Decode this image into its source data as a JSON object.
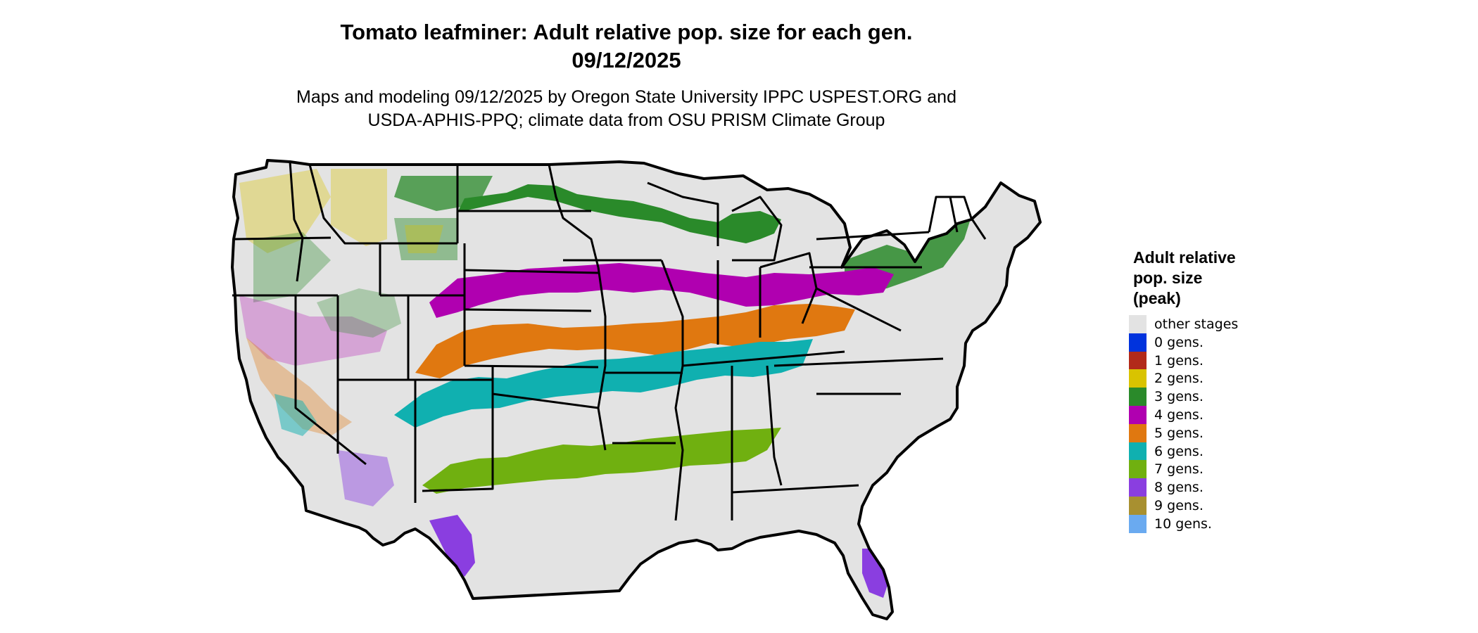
{
  "title_line1": "Tomato leafminer: Adult relative pop. size for each gen.",
  "title_line2": "09/12/2025",
  "subtitle_line1": "Maps and modeling 09/12/2025 by Oregon State University IPPC USPEST.ORG and",
  "subtitle_line2": "USDA-APHIS-PPQ; climate data from OSU PRISM Climate Group",
  "map": {
    "region": "Contiguous United States",
    "base_color": "#e3e3e3",
    "border_color": "#000000",
    "bands": [
      {
        "gens": "3 gens.",
        "color": "#2a8a2a",
        "area": "northern tier"
      },
      {
        "gens": "4 gens.",
        "color": "#b000b0",
        "area": "central plains to mid-Atlantic"
      },
      {
        "gens": "5 gens.",
        "color": "#e07810",
        "area": "southern plains to Virginia"
      },
      {
        "gens": "6 gens.",
        "color": "#10b0b0",
        "area": "Oklahoma to Carolinas"
      },
      {
        "gens": "7 gens.",
        "color": "#70b010",
        "area": "Gulf coast"
      },
      {
        "gens": "8 gens.",
        "color": "#8a3ee0",
        "area": "south Texas and Florida"
      }
    ]
  },
  "legend": {
    "title_lines": [
      "Adult relative",
      "pop. size",
      "(peak)"
    ],
    "items": [
      {
        "label": "other stages",
        "color": "#e3e3e3"
      },
      {
        "label": "0 gens.",
        "color": "#0033dd"
      },
      {
        "label": "1 gens.",
        "color": "#b22a1a"
      },
      {
        "label": "2 gens.",
        "color": "#d9c300"
      },
      {
        "label": "3 gens.",
        "color": "#2a8a2a"
      },
      {
        "label": "4 gens.",
        "color": "#b000b0"
      },
      {
        "label": "5 gens.",
        "color": "#e07810"
      },
      {
        "label": "6 gens.",
        "color": "#10b0b0"
      },
      {
        "label": "7 gens.",
        "color": "#70b010"
      },
      {
        "label": "8 gens.",
        "color": "#8a3ee0"
      },
      {
        "label": "9 gens.",
        "color": "#a89030"
      },
      {
        "label": "10 gens.",
        "color": "#6aaaf0"
      }
    ]
  }
}
